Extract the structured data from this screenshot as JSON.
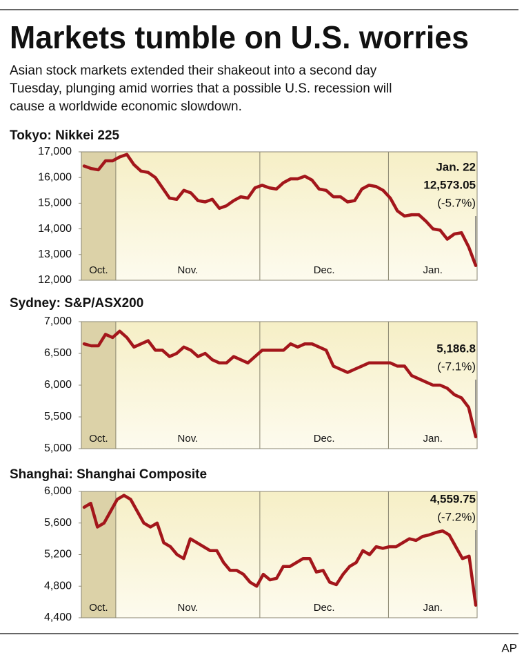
{
  "header": {
    "title": "Markets tumble on U.S. worries",
    "subtitle": [
      "Asian stock markets extended their shakeout into a second day",
      "Tuesday, plunging amid worries that a possible U.S. recession will",
      "cause a worldwide economic slowdown."
    ]
  },
  "credit": "AP",
  "chart_data": [
    {
      "type": "line",
      "title": "Tokyo: Nikkei 225",
      "color": "#a3161b",
      "months": [
        "Oct.",
        "Nov.",
        "Dec.",
        "Jan."
      ],
      "annotations": [
        "Jan. 22",
        "12,573.05",
        "(-5.7%)"
      ],
      "values": [
        16450,
        16350,
        16300,
        16650,
        16650,
        16800,
        16900,
        16500,
        16250,
        16200,
        16000,
        15600,
        15200,
        15150,
        15500,
        15400,
        15100,
        15050,
        15150,
        14800,
        14900,
        15100,
        15250,
        15200,
        15600,
        15700,
        15600,
        15550,
        15800,
        15950,
        15950,
        16050,
        15900,
        15550,
        15500,
        15250,
        15250,
        15050,
        15100,
        15550,
        15700,
        15650,
        15500,
        15200,
        14700,
        14500,
        14550,
        14550,
        14300,
        14000,
        13950,
        13600,
        13800,
        13850,
        13300,
        12573.05
      ],
      "ylim": [
        12000,
        17000
      ],
      "yticks": [
        {
          "value": 12000,
          "label": "12,000"
        },
        {
          "value": 13000,
          "label": "13,000"
        },
        {
          "value": 14000,
          "label": "14,000"
        },
        {
          "value": 15000,
          "label": "15,000"
        },
        {
          "value": 16000,
          "label": "16,000"
        },
        {
          "value": 17000,
          "label": "17,000"
        }
      ],
      "grid": false
    },
    {
      "type": "line",
      "title": "Sydney: S&P/ASX200",
      "color": "#a3161b",
      "months": [
        "Oct.",
        "Nov.",
        "Dec.",
        "Jan."
      ],
      "annotations": [
        "5,186.8",
        "(-7.1%)"
      ],
      "values": [
        6650,
        6620,
        6620,
        6800,
        6750,
        6850,
        6750,
        6600,
        6650,
        6700,
        6550,
        6550,
        6450,
        6500,
        6600,
        6550,
        6450,
        6500,
        6400,
        6350,
        6350,
        6450,
        6400,
        6350,
        6450,
        6550,
        6550,
        6550,
        6550,
        6650,
        6600,
        6650,
        6650,
        6600,
        6550,
        6300,
        6250,
        6200,
        6250,
        6300,
        6350,
        6350,
        6350,
        6350,
        6300,
        6300,
        6150,
        6100,
        6050,
        6000,
        6000,
        5950,
        5850,
        5800,
        5650,
        5186.8
      ],
      "ylim": [
        5000,
        7000
      ],
      "yticks": [
        {
          "value": 5000,
          "label": "5,000"
        },
        {
          "value": 5500,
          "label": "5,500"
        },
        {
          "value": 6000,
          "label": "6,000"
        },
        {
          "value": 6500,
          "label": "6,500"
        },
        {
          "value": 7000,
          "label": "7,000"
        }
      ],
      "grid": false
    },
    {
      "type": "line",
      "title": "Shanghai: Shanghai Composite",
      "color": "#a3161b",
      "months": [
        "Oct.",
        "Nov.",
        "Dec.",
        "Jan."
      ],
      "annotations": [
        "4,559.75",
        "(-7.2%)"
      ],
      "values": [
        5800,
        5850,
        5550,
        5600,
        5750,
        5900,
        5950,
        5900,
        5750,
        5600,
        5550,
        5600,
        5350,
        5300,
        5200,
        5150,
        5400,
        5350,
        5300,
        5250,
        5250,
        5100,
        5000,
        5000,
        4950,
        4850,
        4800,
        4950,
        4880,
        4900,
        5050,
        5050,
        5100,
        5150,
        5150,
        4980,
        5000,
        4850,
        4820,
        4950,
        5050,
        5100,
        5250,
        5200,
        5300,
        5280,
        5300,
        5300,
        5350,
        5400,
        5380,
        5430,
        5450,
        5480,
        5500,
        5450,
        5300,
        5150,
        5180,
        4559.75
      ],
      "ylim": [
        4400,
        6000
      ],
      "yticks": [
        {
          "value": 4400,
          "label": "4,400"
        },
        {
          "value": 4800,
          "label": "4,800"
        },
        {
          "value": 5200,
          "label": "5,200"
        },
        {
          "value": 5600,
          "label": "5,600"
        },
        {
          "value": 6000,
          "label": "6,000"
        }
      ],
      "grid": false
    }
  ]
}
